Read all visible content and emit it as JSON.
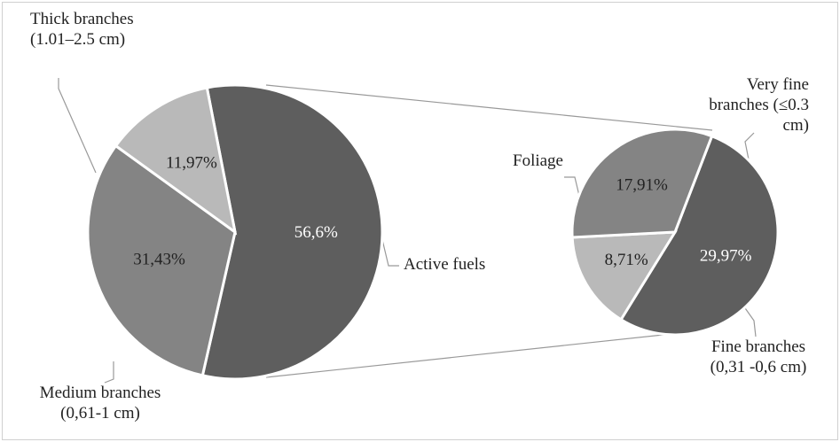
{
  "chart_data": {
    "type": "pie-of-pie",
    "primary": {
      "categories": [
        "Active fuels",
        "Thick branches (1.01–2.5 cm)",
        "Medium branches (0,61-1 cm)"
      ],
      "values": [
        56.6,
        31.43,
        11.97
      ],
      "value_labels": [
        "56,6%",
        "31,43%",
        "11,97%"
      ],
      "colors": [
        "#5e5e5e",
        "#848484",
        "#b9b9b9"
      ]
    },
    "secondary": {
      "categories": [
        "Foliage",
        "Very fine branches (≤0.3 cm)",
        "Fine branches (0,31 -0,6 cm)"
      ],
      "values": [
        29.97,
        8.71,
        17.91
      ],
      "value_labels": [
        "29,97%",
        "8,71%",
        "17,91%"
      ],
      "colors": [
        "#5e5e5e",
        "#b9b9b9",
        "#848484"
      ]
    }
  }
}
